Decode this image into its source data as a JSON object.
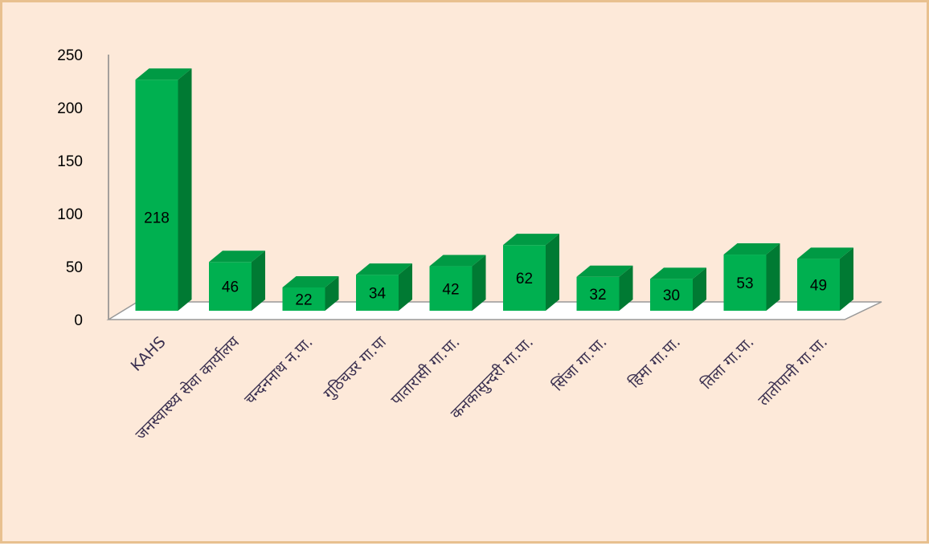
{
  "chart_data": {
    "type": "bar",
    "style": "3d-column",
    "categories": [
      "KAHS",
      "जनस्वास्थ्य सेवा कार्यालय",
      "चन्दननाथ न.पा.",
      "गुठिचउर गा.पा",
      "पातारासी गा.पा.",
      "कनकासुन्दरी गा.पा.",
      "सिंजा गा.पा.",
      "हिमा गा.पा.",
      "तिला गा.पा.",
      "तातोपानी गा.पा."
    ],
    "values": [
      218,
      46,
      22,
      34,
      42,
      62,
      32,
      30,
      53,
      49
    ],
    "data_labels": [
      "218",
      "46",
      "22",
      "34",
      "42",
      "62",
      "32",
      "30",
      "53",
      "49"
    ],
    "y_ticks": [
      "0",
      "50",
      "100",
      "150",
      "200",
      "250"
    ],
    "ylim": [
      0,
      250
    ],
    "grid": false,
    "legend": "none",
    "colors": {
      "front": "#00b050",
      "side": "#007a33",
      "top": "#009a44",
      "floor": "#ffffff",
      "background": "#fde9d9",
      "border": "#e8c08f"
    }
  }
}
